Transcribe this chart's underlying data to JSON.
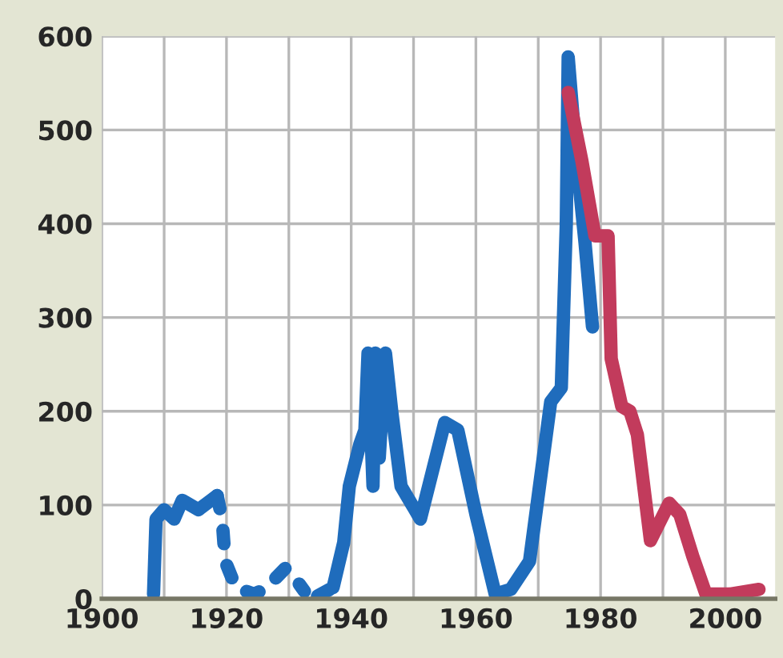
{
  "chart_data": {
    "type": "line",
    "xlim": [
      1900,
      2008
    ],
    "ylim": [
      0,
      600
    ],
    "xticks": [
      1900,
      1920,
      1940,
      1960,
      1980,
      2000
    ],
    "yticks": [
      0,
      100,
      200,
      300,
      400,
      500,
      600
    ],
    "grid": true,
    "legend": false,
    "series": [
      {
        "color": "#1f6cbc",
        "line_style": "solid",
        "x": [
          1908.3,
          1908.7,
          1910,
          1911.6,
          1912.9,
          1915.5,
          1918.5
        ],
        "values": [
          5,
          85,
          95,
          85,
          105,
          95,
          110
        ]
      },
      {
        "color": "#1f6cbc",
        "line_style": "dotted",
        "x": [
          1918.5,
          1919.3,
          1919.8,
          1921.5,
          1924.4,
          1926.1,
          1929.5,
          1931.2,
          1932.5
        ],
        "values": [
          110,
          85,
          40,
          12,
          5,
          10,
          33,
          20,
          8
        ]
      },
      {
        "color": "#1f6cbc",
        "line_style": "dotted",
        "x": [
          1934.6,
          1937.1
        ],
        "values": [
          3,
          12
        ]
      },
      {
        "color": "#1f6cbc",
        "line_style": "solid",
        "x": [
          1937.1,
          1938.8,
          1939.7,
          1941.4,
          1942.2,
          1942.7,
          1943.5,
          1943.9,
          1944.5,
          1945.5,
          1946.5,
          1948,
          1951.1,
          1955,
          1957.1,
          1960,
          1963.1,
          1965.6,
          1968.6,
          1972,
          1973.7,
          1974.5,
          1974.8,
          1976,
          1977.5,
          1978.7
        ],
        "values": [
          12,
          60,
          120,
          165,
          180,
          262,
          120,
          262,
          150,
          262,
          200,
          120,
          85,
          188,
          180,
          90,
          5,
          10,
          40,
          210,
          225,
          400,
          578,
          480,
          380,
          290
        ]
      },
      {
        "color": "#c23b5c",
        "line_style": "solid",
        "x": [
          1974.8,
          1977,
          1979.1,
          1981.2,
          1981.7,
          1983.4,
          1984.7,
          1985.9,
          1988,
          1991,
          1992.7,
          1994.8,
          1996.9,
          2000.7,
          2005.4
        ],
        "values": [
          540,
          467,
          387,
          387,
          256,
          205,
          200,
          175,
          62,
          102,
          90,
          45,
          5,
          5,
          10
        ]
      }
    ]
  }
}
